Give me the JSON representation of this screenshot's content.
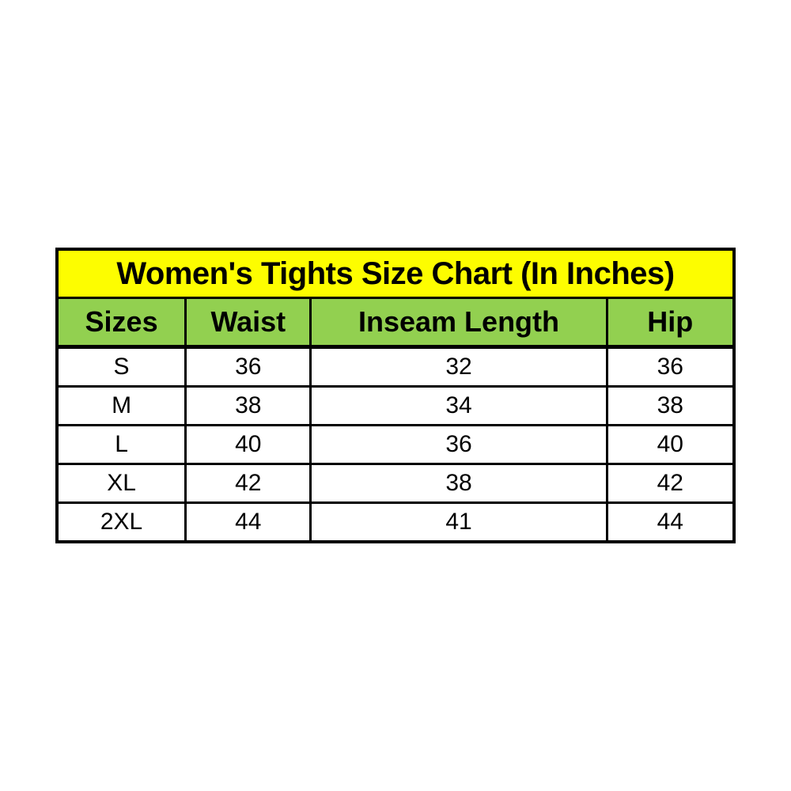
{
  "chart_data": {
    "type": "table",
    "title": "Women's Tights Size Chart (In Inches)",
    "unit": "Inches",
    "columns": [
      "Sizes",
      "Waist",
      "Inseam Length",
      "Hip"
    ],
    "rows": [
      [
        "S",
        "36",
        "32",
        "36"
      ],
      [
        "M",
        "38",
        "34",
        "38"
      ],
      [
        "L",
        "40",
        "36",
        "40"
      ],
      [
        "XL",
        "42",
        "38",
        "42"
      ],
      [
        "2XL",
        "44",
        "41",
        "44"
      ]
    ],
    "layout": {
      "title_bg": "#fdfd00",
      "header_bg": "#92d050",
      "row_bg": "#ffffff",
      "border_color": "#000000",
      "text_color": "#000000",
      "page_bg": "#ffffff"
    }
  }
}
